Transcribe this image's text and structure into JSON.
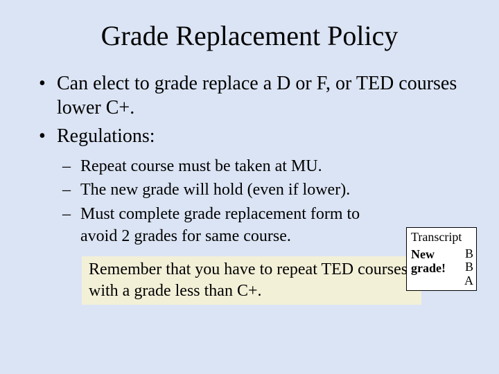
{
  "title": "Grade Replacement Policy",
  "bullets": {
    "b1": "Can elect to grade replace a D or F, or TED courses lower C+.",
    "b2": "Regulations:",
    "sub1": "Repeat course must be taken at MU.",
    "sub2": "The new grade will hold (even if lower).",
    "sub3": "Must complete grade replacement form to avoid 2 grades for same course."
  },
  "reminder": "Remember that you have to repeat TED courses with a grade less than C+.",
  "transcript": {
    "header": "Transcript",
    "label_line1": "New",
    "label_line2": "grade!",
    "grades": {
      "g1": "B",
      "g2": "B",
      "g3": "A"
    }
  },
  "colors": {
    "background": "#dbe4f4",
    "reminder_bg": "#f3f0d8",
    "box_bg": "#ffffff",
    "text": "#000000"
  }
}
